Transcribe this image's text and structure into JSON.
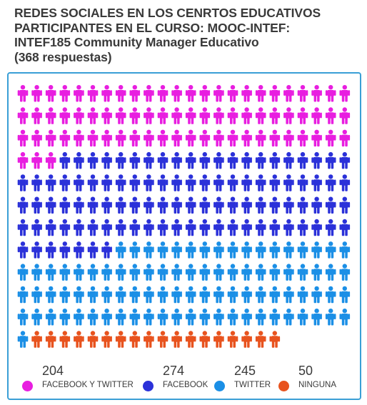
{
  "title": "REDES SOCIALES EN LOS CENRTOS EDUCATIVOS\nPARTICIPANTES EN EL CURSO: MOOC-INTEF:\nINTEF185 Community Manager Educativo\n(368 respuestas)",
  "chart_data": {
    "type": "pictograph",
    "title": "REDES SOCIALES EN LOS CENRTOS EDUCATIVOS PARTICIPANTES EN EL CURSO: MOOC-INTEF: INTEF185 Community Manager Educativo (368 respuestas)",
    "icon": "person-icon",
    "grid": {
      "columns": 24,
      "rows": 12
    },
    "series": [
      {
        "name": "FACEBOOK Y TWITTER",
        "value": 204,
        "icons": 75,
        "color": "#e81ee0"
      },
      {
        "name": "FACEBOOK",
        "value": 274,
        "icons": 100,
        "color": "#2b31d9"
      },
      {
        "name": "TWITTER",
        "value": 245,
        "icons": 90,
        "color": "#1b8fe6"
      },
      {
        "name": "NINGUNA",
        "value": 50,
        "icons": 18,
        "color": "#e8531e"
      }
    ]
  }
}
